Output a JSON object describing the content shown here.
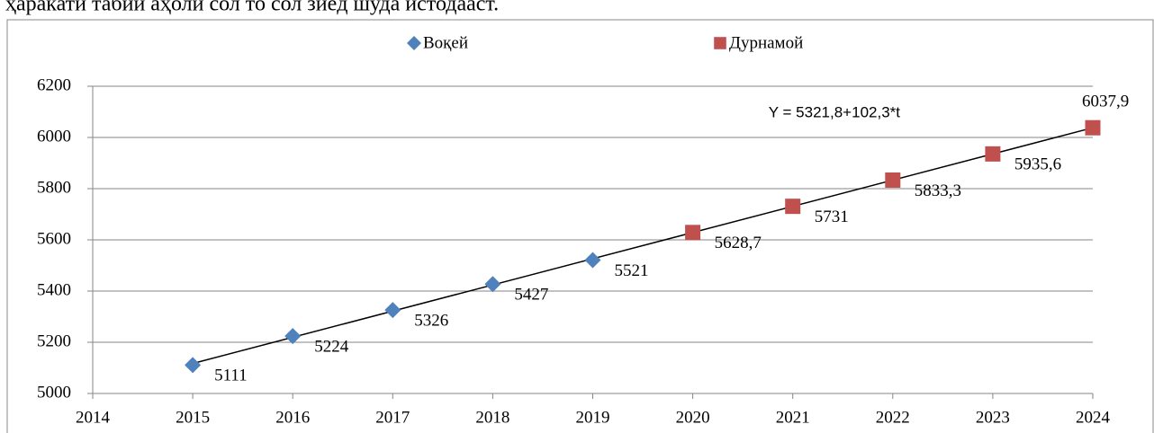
{
  "caption_text": "ҳаракати табиӣ аҳолӣ сол то сол зиёд шуда истодааст.",
  "chart_data": {
    "type": "scatter",
    "xlim": [
      2014,
      2024
    ],
    "xticks": [
      2014,
      2015,
      2016,
      2017,
      2018,
      2019,
      2020,
      2021,
      2022,
      2023,
      2024
    ],
    "ylim": [
      5000,
      6200
    ],
    "yticks": [
      5000,
      5200,
      5400,
      5600,
      5800,
      6000,
      6200
    ],
    "grid": true,
    "legend": "top",
    "series": [
      {
        "name": "Воқей",
        "color": "#4f81bd",
        "marker": "diamond",
        "x": [
          2015,
          2016,
          2017,
          2018,
          2019
        ],
        "values": [
          5111,
          5224,
          5326,
          5427,
          5521
        ],
        "value_labels": [
          "5111",
          "5224",
          "5326",
          "5427",
          "5521"
        ]
      },
      {
        "name": "Дурнамой",
        "color": "#c0504d",
        "marker": "square",
        "x": [
          2020,
          2021,
          2022,
          2023,
          2024
        ],
        "values": [
          5628.7,
          5731,
          5833.3,
          5935.6,
          6037.9
        ],
        "value_labels": [
          "5628,7",
          "5731",
          "5833,3",
          "5935,6",
          "6037,9"
        ]
      }
    ],
    "trendline": {
      "label": "Y = 5321,8+102,3*t",
      "x": [
        2015,
        2024
      ],
      "values": [
        5117.2,
        6037.9
      ],
      "color": "#000000"
    }
  }
}
